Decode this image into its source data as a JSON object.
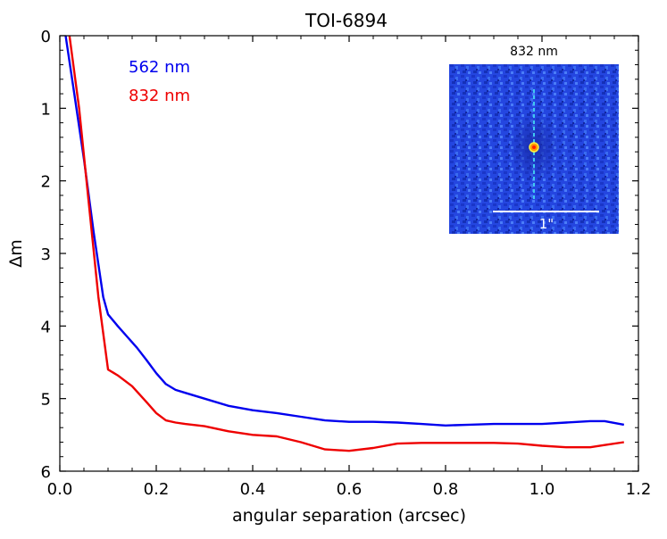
{
  "chart_data": {
    "type": "line",
    "title": "TOI-6894",
    "xlabel": "angular separation (arcsec)",
    "ylabel": "Δm",
    "xlim": [
      0.0,
      1.2
    ],
    "ylim": [
      6,
      0
    ],
    "y_inverted": true,
    "x_ticks": [
      "0.0",
      "0.2",
      "0.4",
      "0.6",
      "0.8",
      "1.0",
      "1.2"
    ],
    "y_ticks": [
      "0",
      "1",
      "2",
      "3",
      "4",
      "5",
      "6"
    ],
    "grid": false,
    "legend_position": "top-left",
    "series": [
      {
        "name": "562 nm",
        "color": "#0000ee",
        "x": [
          0.012,
          0.03,
          0.05,
          0.07,
          0.09,
          0.1,
          0.12,
          0.14,
          0.16,
          0.18,
          0.2,
          0.22,
          0.24,
          0.26,
          0.3,
          0.35,
          0.4,
          0.45,
          0.5,
          0.55,
          0.6,
          0.65,
          0.7,
          0.75,
          0.8,
          0.85,
          0.9,
          0.95,
          1.0,
          1.05,
          1.1,
          1.13,
          1.17
        ],
        "y": [
          0.0,
          0.8,
          1.7,
          2.7,
          3.6,
          3.84,
          4.0,
          4.15,
          4.3,
          4.47,
          4.65,
          4.8,
          4.88,
          4.92,
          5.0,
          5.1,
          5.16,
          5.2,
          5.25,
          5.3,
          5.32,
          5.32,
          5.33,
          5.35,
          5.37,
          5.36,
          5.35,
          5.35,
          5.35,
          5.33,
          5.31,
          5.31,
          5.36
        ]
      },
      {
        "name": "832 nm",
        "color": "#ee0000",
        "x": [
          0.02,
          0.04,
          0.06,
          0.08,
          0.1,
          0.12,
          0.15,
          0.18,
          0.2,
          0.22,
          0.24,
          0.26,
          0.3,
          0.35,
          0.4,
          0.45,
          0.5,
          0.55,
          0.6,
          0.65,
          0.7,
          0.75,
          0.8,
          0.85,
          0.9,
          0.95,
          1.0,
          1.05,
          1.1,
          1.13,
          1.17
        ],
        "y": [
          0.0,
          1.0,
          2.3,
          3.6,
          4.6,
          4.68,
          4.83,
          5.05,
          5.2,
          5.3,
          5.33,
          5.35,
          5.38,
          5.45,
          5.5,
          5.52,
          5.6,
          5.7,
          5.72,
          5.68,
          5.62,
          5.61,
          5.61,
          5.61,
          5.61,
          5.62,
          5.65,
          5.67,
          5.67,
          5.64,
          5.6
        ]
      }
    ],
    "inset": {
      "label": "832 nm",
      "scale_label": "1\""
    }
  }
}
